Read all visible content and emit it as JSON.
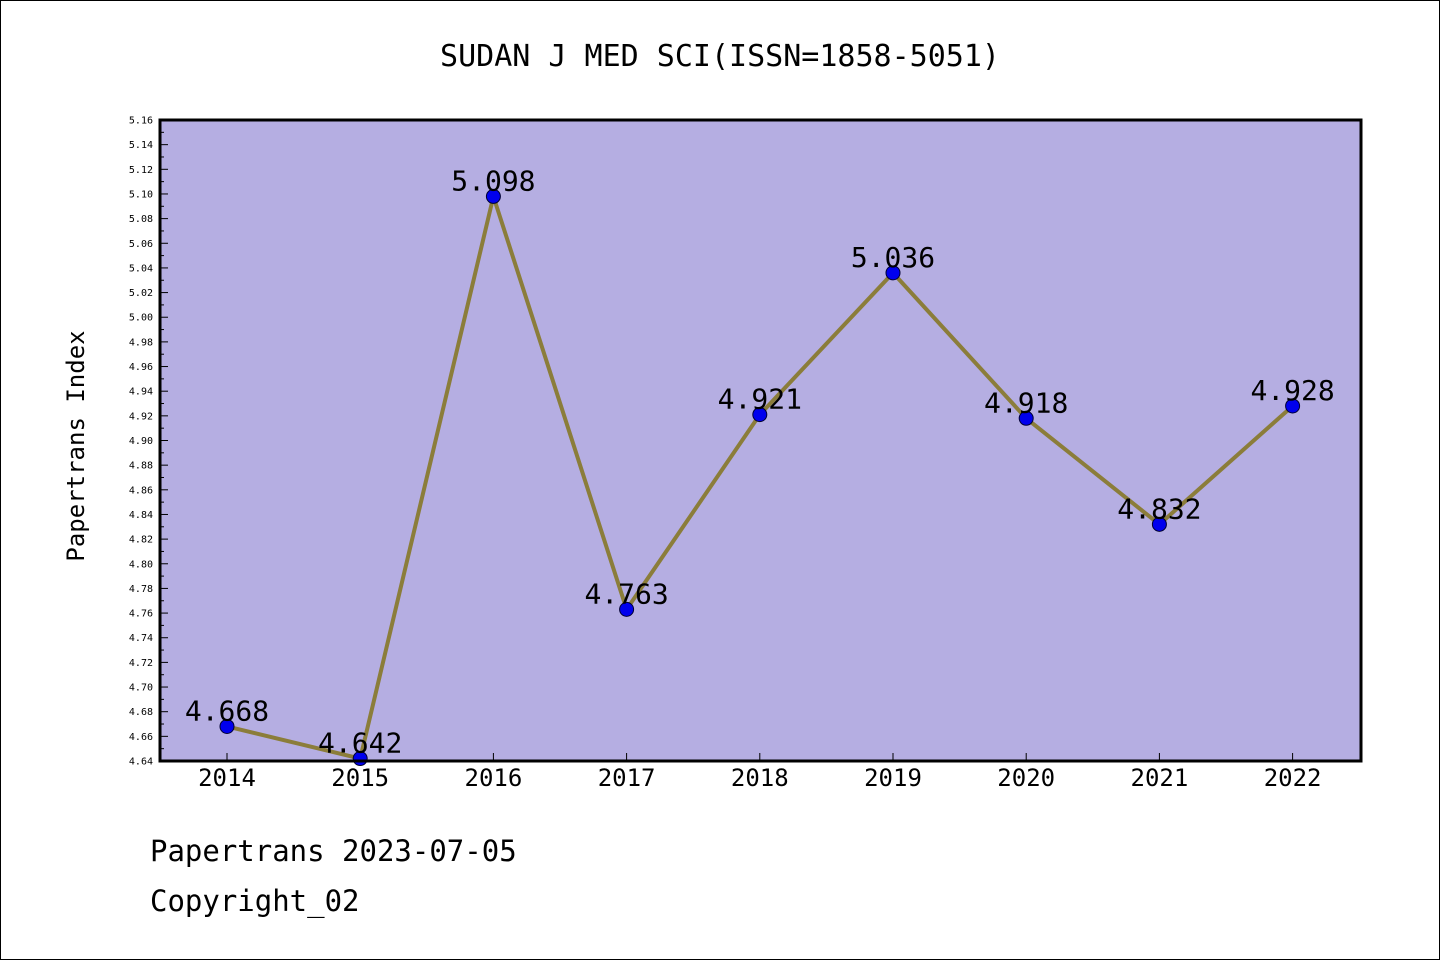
{
  "chart_data": {
    "type": "line",
    "title": "SUDAN J MED SCI(ISSN=1858-5051)",
    "xlabel": "",
    "ylabel": "Papertrans Index",
    "categories": [
      "2014",
      "2015",
      "2016",
      "2017",
      "2018",
      "2019",
      "2020",
      "2021",
      "2022"
    ],
    "values": [
      4.668,
      4.642,
      5.098,
      4.763,
      4.921,
      5.036,
      4.918,
      4.832,
      4.928
    ],
    "data_labels": [
      "4.668",
      "4.642",
      "5.098",
      "4.763",
      "4.921",
      "5.036",
      "4.918",
      "4.832",
      "4.928"
    ],
    "ylim": [
      4.64,
      5.16
    ],
    "ytick_step": 0.02,
    "grid": false,
    "legend": "none",
    "colors": {
      "plot_background": "#b5aee2",
      "line": "#8b7d3a",
      "marker": "#0000ee",
      "axis": "#000000"
    }
  },
  "footer": {
    "date_line": "Papertrans 2023-07-05",
    "copyright_line": "Copyright_02"
  }
}
